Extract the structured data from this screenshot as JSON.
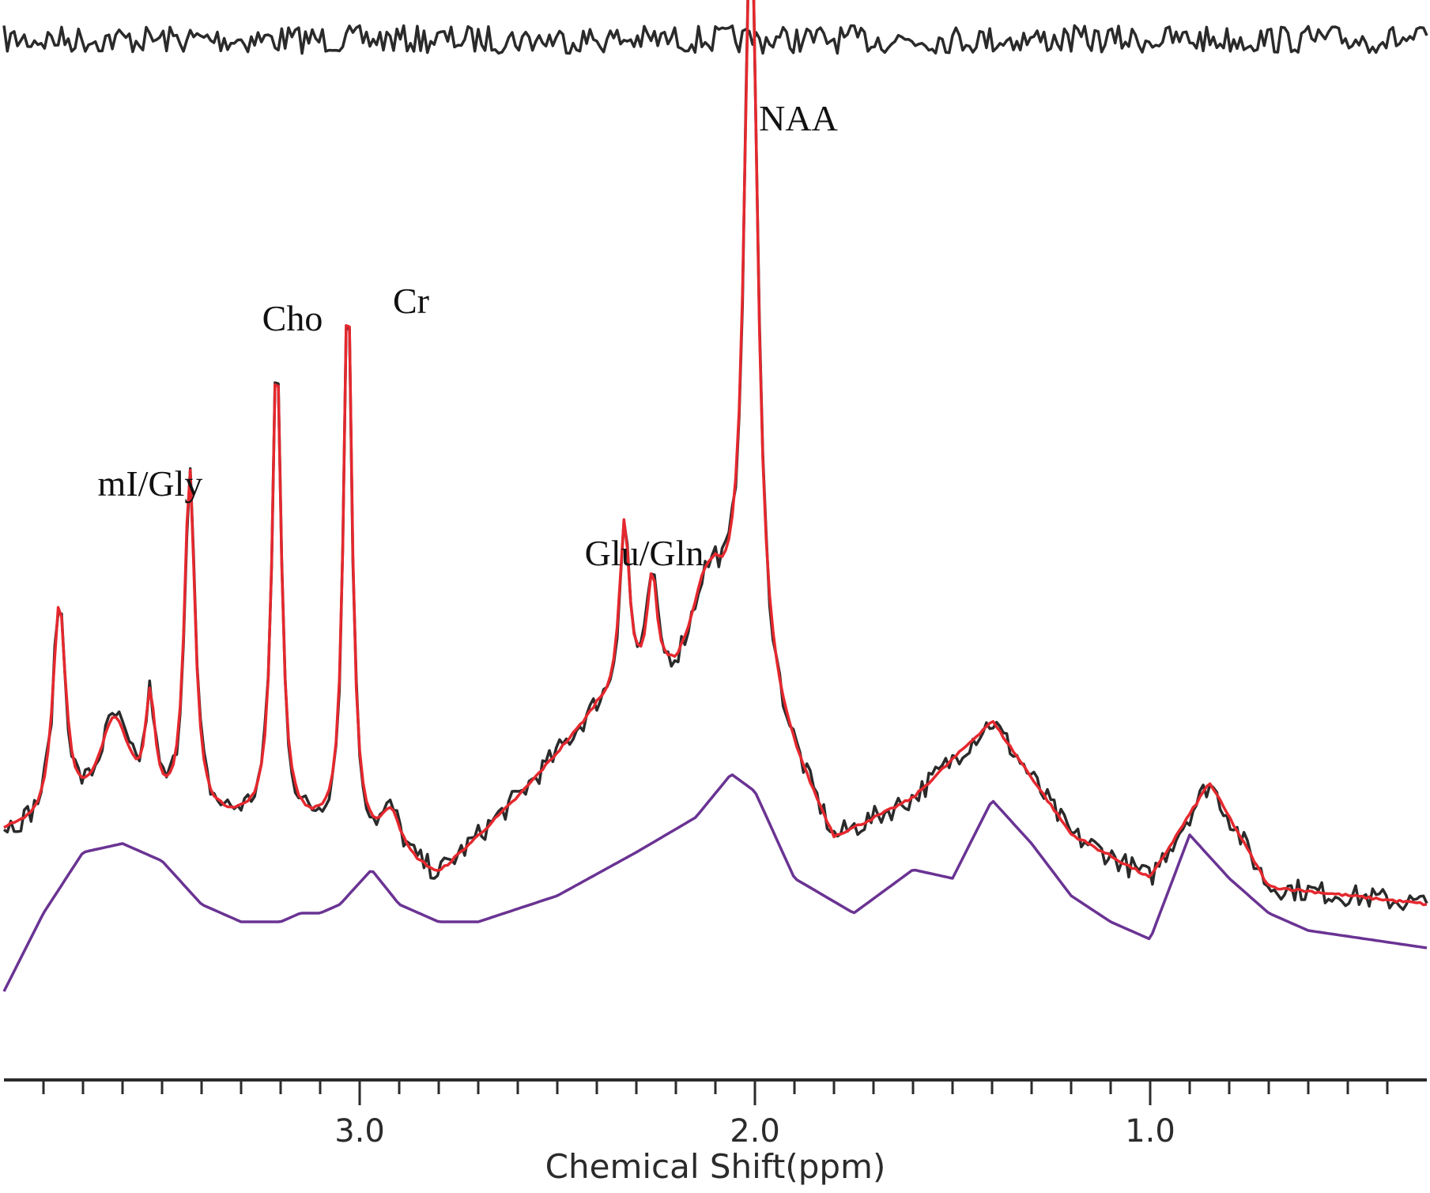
{
  "chart_data": {
    "type": "line",
    "xlabel": "Chemical Shift(ppm)",
    "ylabel": "",
    "title": "",
    "xlim": [
      3.9,
      0.3
    ],
    "x_reversed": true,
    "grid": false,
    "x_tick_labels": [
      {
        "value": 3.0,
        "label": "3.0"
      },
      {
        "value": 2.0,
        "label": "2.0"
      },
      {
        "value": 1.0,
        "label": "1.0"
      }
    ],
    "x_minor_ticks": [
      3.8,
      3.7,
      3.6,
      3.5,
      3.4,
      3.3,
      3.2,
      3.1,
      2.9,
      2.8,
      2.7,
      2.6,
      2.5,
      2.4,
      2.3,
      2.2,
      2.1,
      1.9,
      1.8,
      1.7,
      1.6,
      1.5,
      1.4,
      1.3,
      1.2,
      1.1,
      0.9,
      0.8,
      0.7,
      0.6,
      0.5,
      0.4
    ],
    "peak_labels": [
      {
        "text": "NAA",
        "x": 1.89,
        "y": 90
      },
      {
        "text": "Cr",
        "x": 2.87,
        "y": 69
      },
      {
        "text": "Cho",
        "x": 3.17,
        "y": 67
      },
      {
        "text": "mI/Gly",
        "x": 3.53,
        "y": 48
      },
      {
        "text": "Glu/Gln",
        "x": 2.28,
        "y": 40
      }
    ],
    "series": [
      {
        "color": "#2a2a2a",
        "role": "measured spectrum",
        "baseline_points": [
          [
            3.9,
            9
          ],
          [
            3.3,
            10
          ],
          [
            3.1,
            9
          ],
          [
            2.8,
            4
          ],
          [
            2.6,
            13
          ],
          [
            2.4,
            23
          ],
          [
            2.2,
            27
          ],
          [
            2.1,
            35
          ],
          [
            1.8,
            8
          ],
          [
            1.6,
            13
          ],
          [
            1.4,
            22
          ],
          [
            1.2,
            9
          ],
          [
            1.0,
            4
          ],
          [
            0.85,
            15
          ],
          [
            0.7,
            3
          ],
          [
            0.3,
            1
          ]
        ],
        "peaks": [
          [
            3.76,
            25,
            0.02
          ],
          [
            3.62,
            12,
            0.05
          ],
          [
            3.53,
            12,
            0.015
          ],
          [
            3.43,
            40,
            0.016
          ],
          [
            3.21,
            55,
            0.014
          ],
          [
            3.03,
            65,
            0.013
          ],
          [
            2.92,
            5,
            0.03
          ],
          [
            2.33,
            20,
            0.015
          ],
          [
            2.26,
            12,
            0.015
          ],
          [
            2.13,
            4,
            0.03
          ],
          [
            2.01,
            90,
            0.02
          ]
        ],
        "noise_amplitude": 1.3
      },
      {
        "color": "#e5282e",
        "role": "model fit",
        "same_shape_as": "measured spectrum",
        "noise_amplitude": 0.3
      },
      {
        "color": "#6a3393",
        "role": "baseline",
        "baseline_points": [
          [
            3.9,
            -9
          ],
          [
            3.8,
            0
          ],
          [
            3.7,
            7
          ],
          [
            3.6,
            8
          ],
          [
            3.5,
            6
          ],
          [
            3.4,
            1
          ],
          [
            3.3,
            -1
          ],
          [
            3.2,
            -1
          ],
          [
            3.15,
            0
          ],
          [
            3.1,
            0
          ],
          [
            3.05,
            1
          ],
          [
            2.97,
            5
          ],
          [
            2.9,
            1
          ],
          [
            2.8,
            -1
          ],
          [
            2.7,
            -1
          ],
          [
            2.5,
            2
          ],
          [
            2.3,
            7
          ],
          [
            2.15,
            11
          ],
          [
            2.06,
            16
          ],
          [
            2.0,
            14
          ],
          [
            1.9,
            4
          ],
          [
            1.75,
            0
          ],
          [
            1.6,
            5
          ],
          [
            1.5,
            4
          ],
          [
            1.4,
            13
          ],
          [
            1.3,
            8
          ],
          [
            1.2,
            2
          ],
          [
            1.1,
            -1
          ],
          [
            1.0,
            -3
          ],
          [
            0.9,
            9
          ],
          [
            0.8,
            4
          ],
          [
            0.7,
            0
          ],
          [
            0.6,
            -2
          ],
          [
            0.3,
            -4
          ]
        ]
      },
      {
        "color": "#2a2a2a",
        "role": "residual",
        "noise_amplitude": 1.6
      }
    ]
  }
}
